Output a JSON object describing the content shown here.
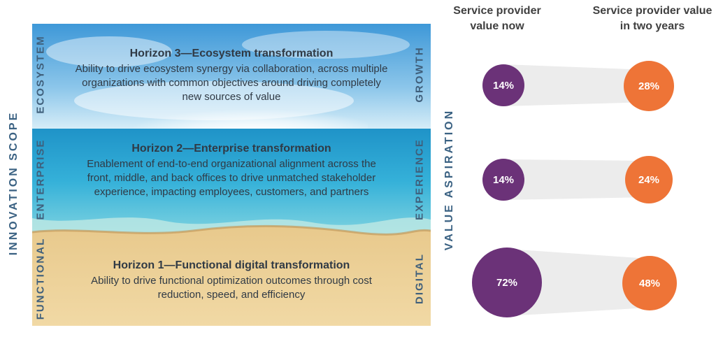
{
  "left_axis_label": "INNOVATION SCOPE",
  "right_axis_label": "VALUE ASPIRATION",
  "bands": [
    {
      "left_label": "ECOSYSTEM",
      "right_label": "GROWTH",
      "title": "Horizon 3—Ecosystem transformation",
      "description": "Ability to drive ecosystem synergy via collaboration, across multiple organizations with common objectives around driving completely new sources of value",
      "value_now": "14%",
      "value_two_years": "28%"
    },
    {
      "left_label": "ENTERPRISE",
      "right_label": "EXPERIENCE",
      "title": "Horizon 2—Enterprise transformation",
      "description": "Enablement of end-to-end organizational alignment across the front, middle, and back offices to drive unmatched stakeholder experience, impacting employees, customers, and partners",
      "value_now": "14%",
      "value_two_years": "24%"
    },
    {
      "left_label": "FUNCTIONAL",
      "right_label": "DIGITAL",
      "title": "Horizon 1—Functional digital transformation",
      "description": "Ability to drive functional optimization outcomes through cost reduction, speed, and efficiency",
      "value_now": "72%",
      "value_two_years": "48%"
    }
  ],
  "columns": {
    "now": "Service provider value now",
    "two_years": "Service provider value in two years"
  },
  "colors": {
    "now": "#6b3278",
    "two_years": "#ee7437",
    "label_blue": "#3b6283"
  }
}
